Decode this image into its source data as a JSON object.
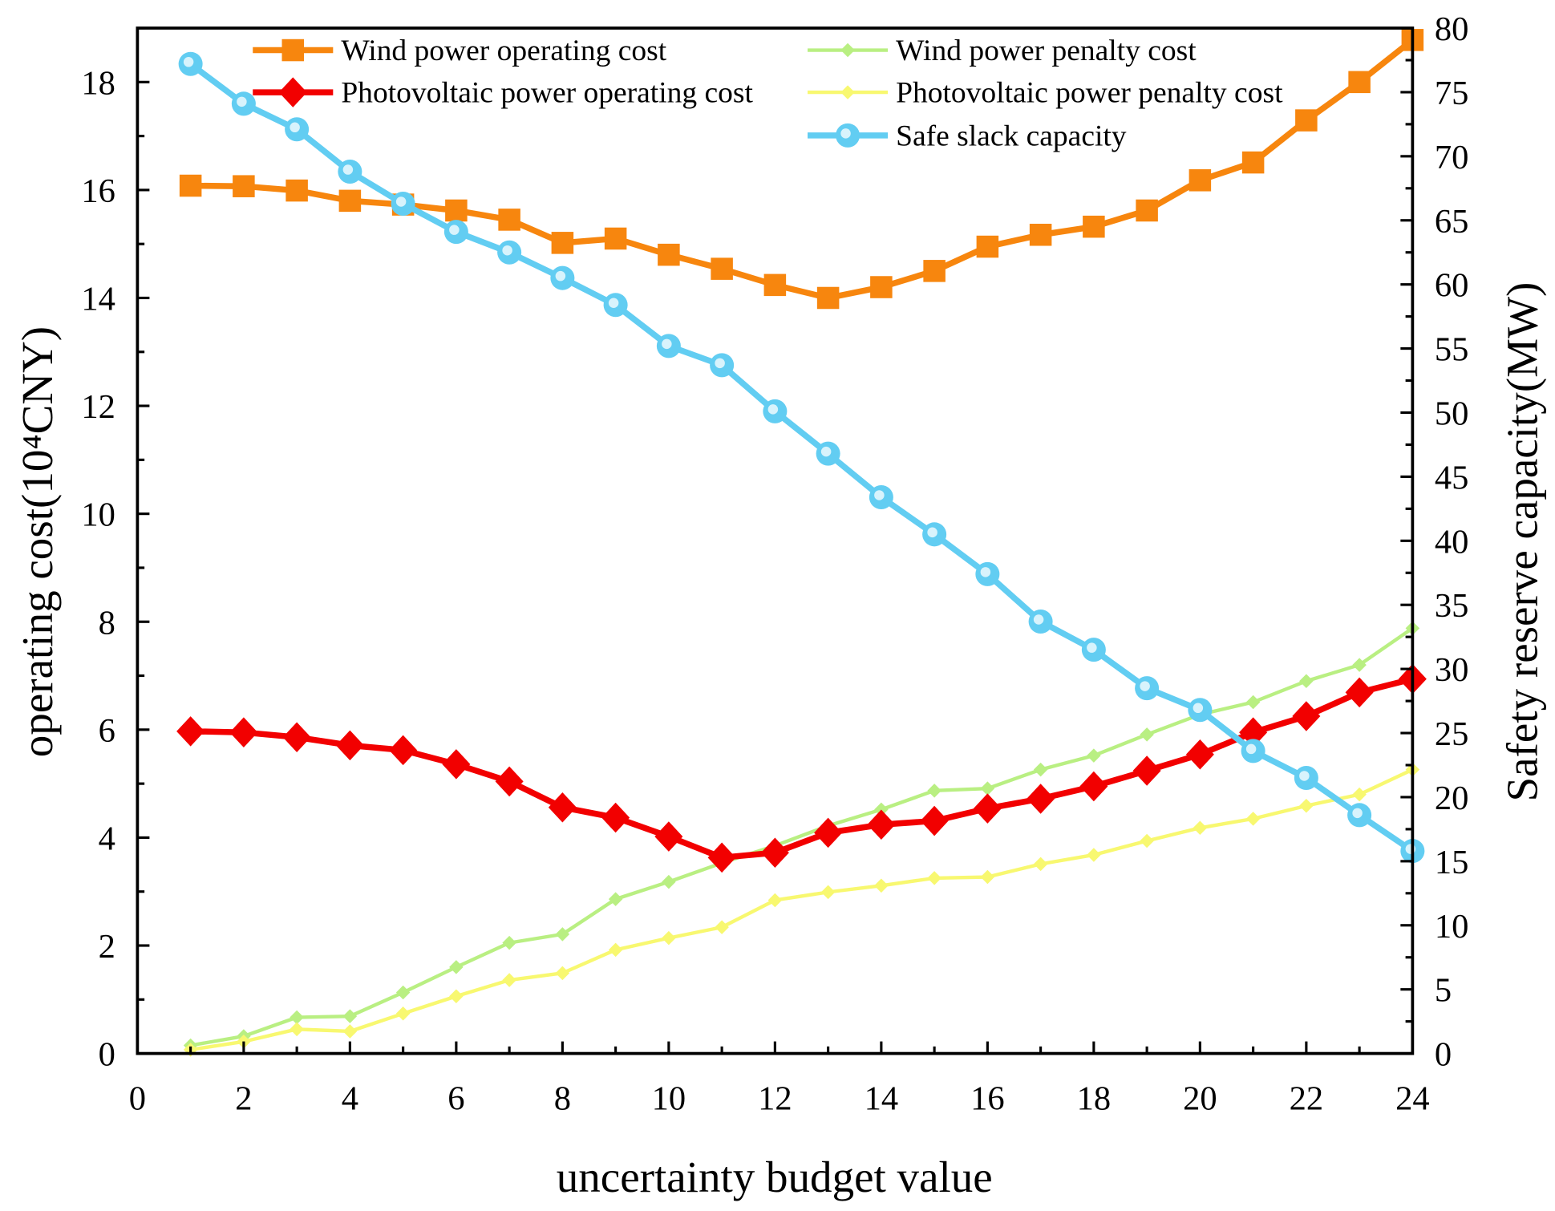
{
  "chart_data": {
    "type": "line",
    "xlabel": "uncertainty budget value",
    "ylabel": "operating cost(10⁴CNY)",
    "y2label": "Safety reserve capacity(MW)",
    "xlim": [
      0,
      24
    ],
    "ylim": [
      0,
      19
    ],
    "y2lim": [
      0,
      80
    ],
    "x_ticks": [
      "0",
      "2",
      "4",
      "6",
      "8",
      "10",
      "12",
      "14",
      "16",
      "18",
      "20",
      "22",
      "24"
    ],
    "y_ticks": [
      "0",
      "2",
      "4",
      "6",
      "8",
      "10",
      "12",
      "14",
      "16",
      "18"
    ],
    "y2_ticks": [
      "0",
      "5",
      "10",
      "15",
      "20",
      "25",
      "30",
      "35",
      "40",
      "45",
      "50",
      "55",
      "60",
      "65",
      "70",
      "75",
      "80"
    ],
    "grid": false,
    "legend_position": "top",
    "x": [
      1,
      2,
      3,
      4,
      5,
      6,
      7,
      8,
      9,
      10,
      11,
      12,
      13,
      14,
      15,
      16,
      17,
      18,
      19,
      20,
      21,
      22,
      23,
      24
    ],
    "series": [
      {
        "name": "Wind power operating cost",
        "axis": "left",
        "color": "#f7860e",
        "marker": "square",
        "values": [
          16.08,
          16.07,
          15.99,
          15.8,
          15.73,
          15.62,
          15.45,
          15.02,
          15.1,
          14.8,
          14.54,
          14.24,
          14.0,
          14.2,
          14.5,
          14.95,
          15.17,
          15.32,
          15.62,
          16.18,
          16.51,
          17.29,
          18.0,
          18.78
        ]
      },
      {
        "name": "Photovoltaic power operating cost",
        "axis": "left",
        "color": "#f20000",
        "marker": "diamond",
        "values": [
          5.97,
          5.95,
          5.86,
          5.71,
          5.62,
          5.36,
          5.04,
          4.56,
          4.37,
          4.02,
          3.63,
          3.72,
          4.09,
          4.24,
          4.31,
          4.54,
          4.72,
          4.95,
          5.24,
          5.54,
          5.95,
          6.25,
          6.69,
          6.94
        ]
      },
      {
        "name": "Wind power penalty cost",
        "axis": "left",
        "color": "#b9ef82",
        "marker": "small-diamond",
        "values": [
          0.15,
          0.32,
          0.67,
          0.69,
          1.13,
          1.6,
          2.05,
          2.21,
          2.86,
          3.18,
          3.53,
          3.85,
          4.22,
          4.52,
          4.87,
          4.91,
          5.26,
          5.52,
          5.91,
          6.28,
          6.51,
          6.9,
          7.2,
          7.88
        ]
      },
      {
        "name": "Photovoltaic power penalty cost",
        "axis": "left",
        "color": "#f8f870",
        "marker": "small-diamond",
        "values": [
          0.07,
          0.22,
          0.45,
          0.41,
          0.74,
          1.06,
          1.36,
          1.49,
          1.92,
          2.14,
          2.34,
          2.84,
          2.99,
          3.11,
          3.25,
          3.27,
          3.51,
          3.68,
          3.94,
          4.18,
          4.35,
          4.59,
          4.8,
          5.26
        ]
      },
      {
        "name": "Safe slack capacity",
        "axis": "right",
        "color": "#62cdf2",
        "marker": "circle",
        "values": [
          77.2,
          74.1,
          72.1,
          68.8,
          66.3,
          64.1,
          62.5,
          60.5,
          58.4,
          55.2,
          53.7,
          50.1,
          46.8,
          43.4,
          40.5,
          37.4,
          33.7,
          31.5,
          28.5,
          26.8,
          23.6,
          21.5,
          18.6,
          15.8
        ]
      }
    ]
  }
}
